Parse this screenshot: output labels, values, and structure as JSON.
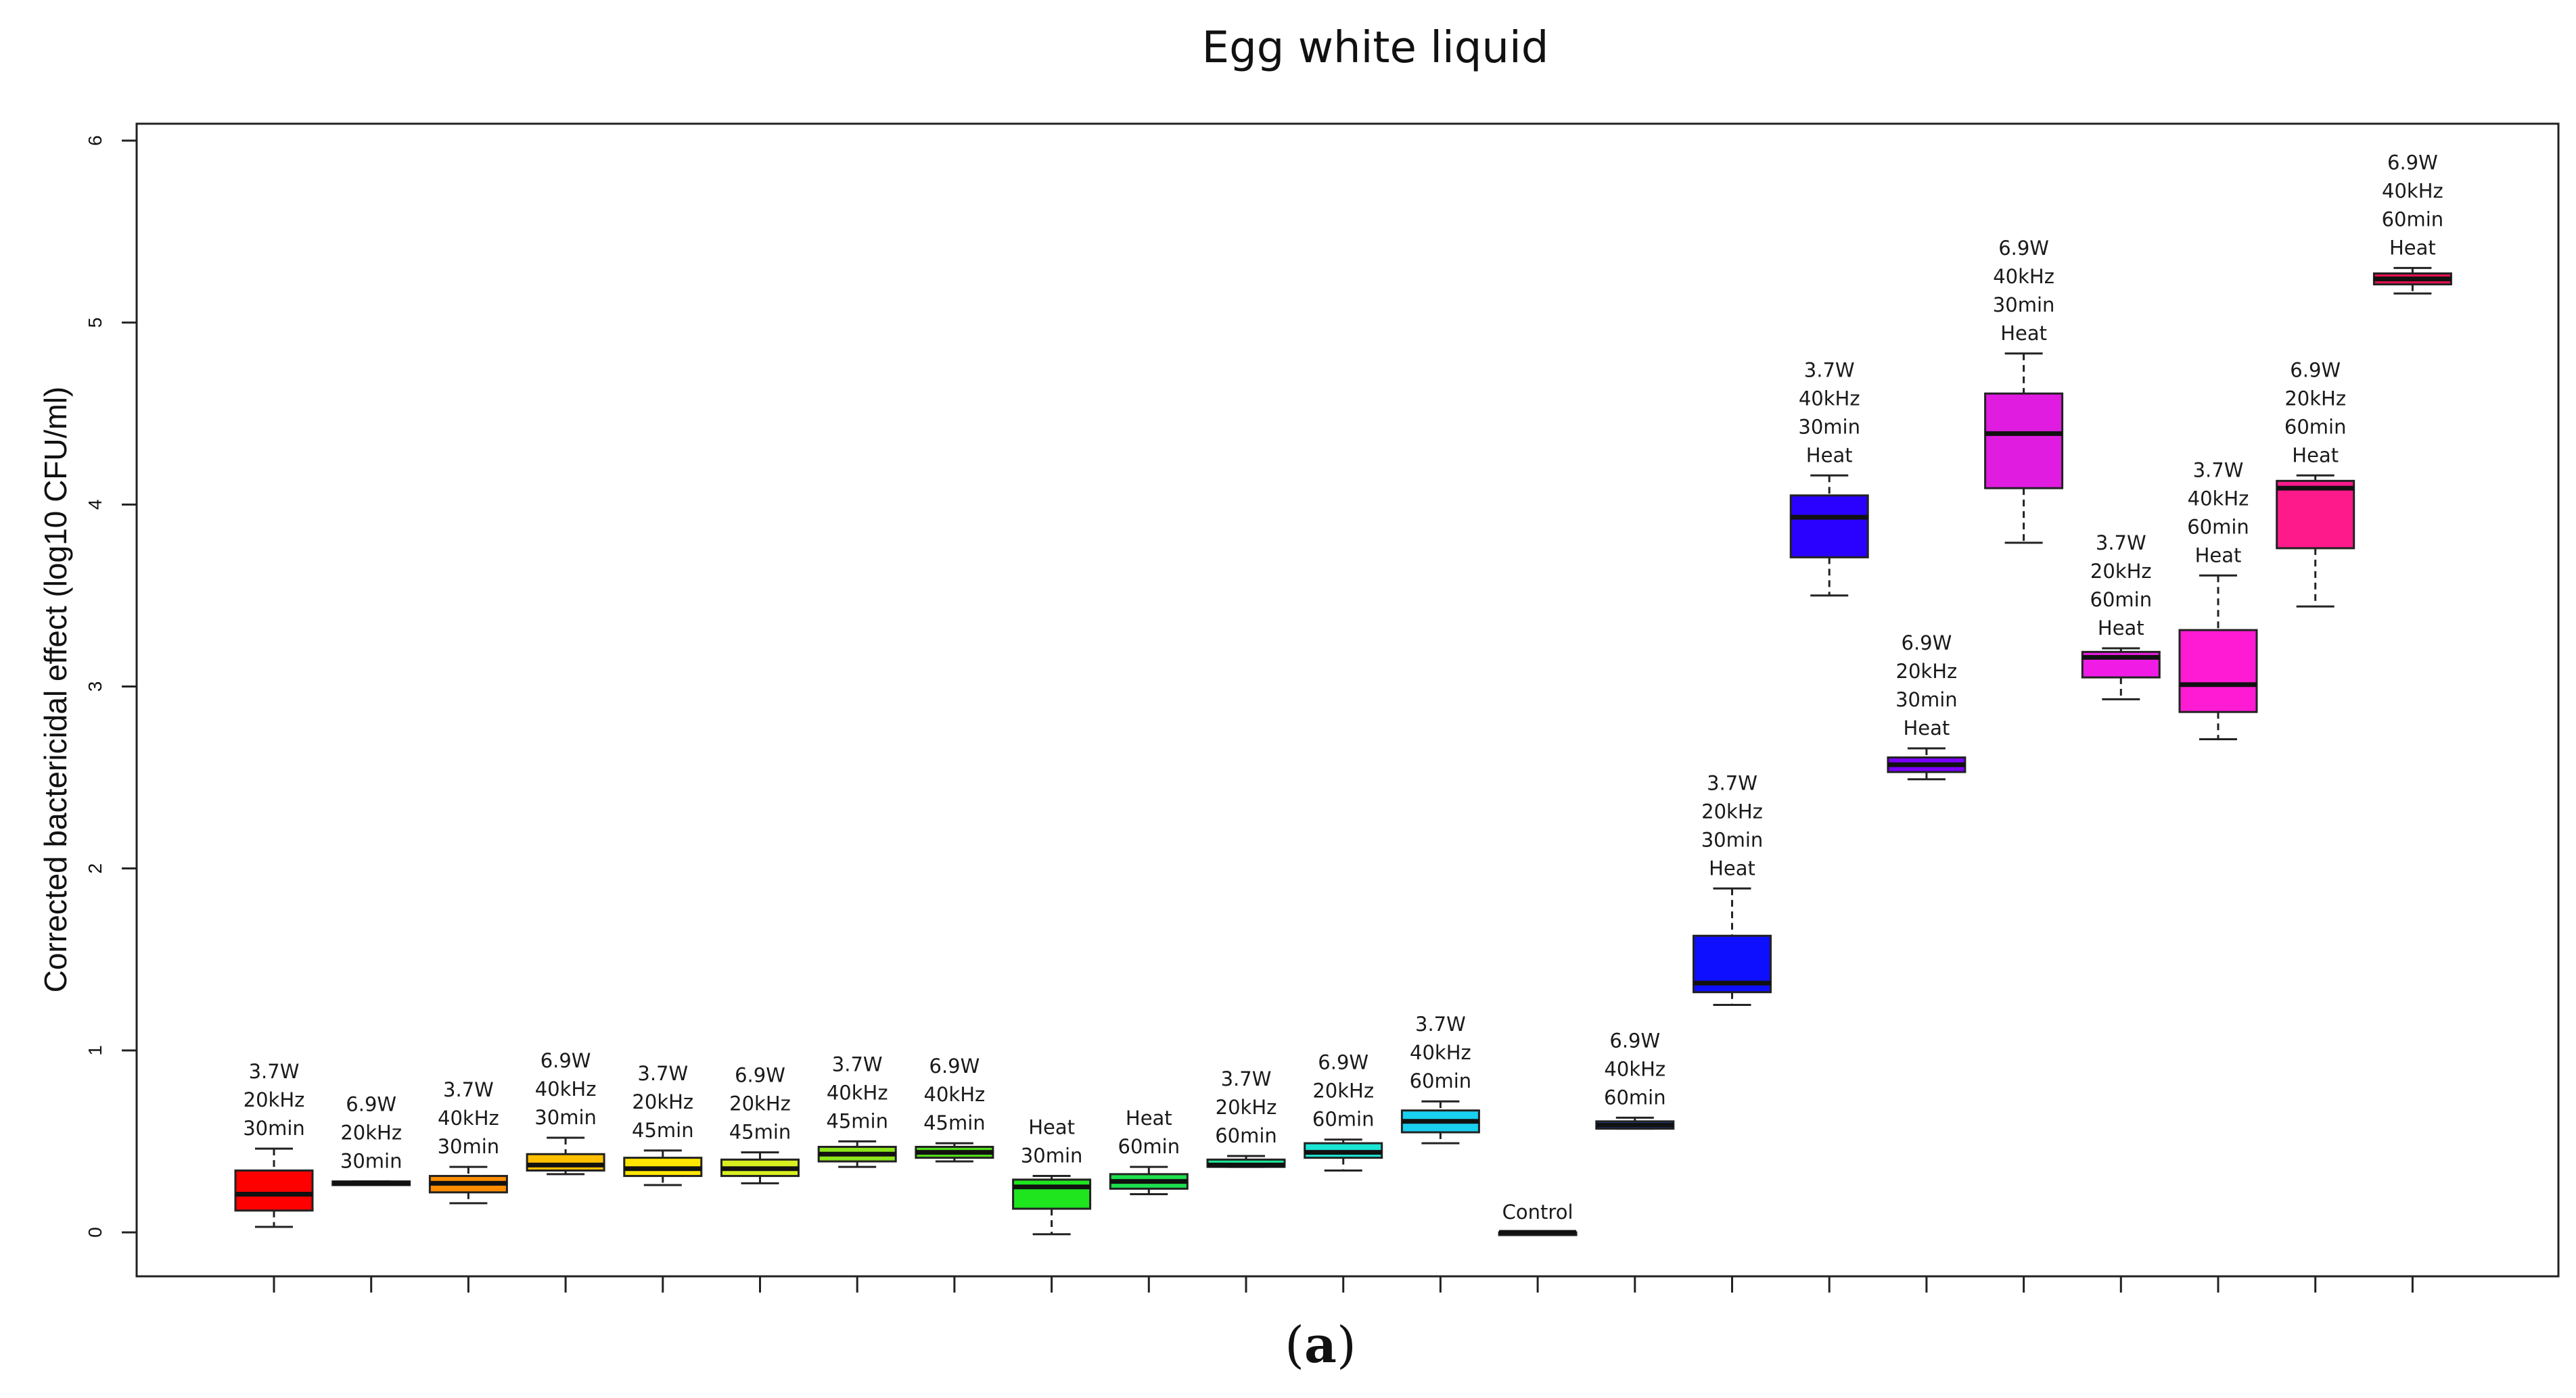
{
  "chart_data": {
    "type": "boxplot",
    "title": "Egg white liquid",
    "xlabel": "",
    "ylabel": "Corrected bactericidal effect (log10 CFU/ml)",
    "ylim": [
      0,
      6
    ],
    "yticks": [
      "0",
      "1",
      "2",
      "3",
      "4",
      "5",
      "6"
    ],
    "caption_open": "(",
    "caption_letter": "a",
    "caption_close": ")",
    "grid": false,
    "boxes": [
      {
        "label": [
          "3.7W",
          "20kHz",
          "30min"
        ],
        "color": "#ff0000",
        "min": 0.03,
        "q1": 0.12,
        "median": 0.21,
        "q3": 0.34,
        "max": 0.46
      },
      {
        "label": [
          "6.9W",
          "20kHz",
          "30min"
        ],
        "color": "#ff2a00",
        "min": 0.26,
        "q1": 0.26,
        "median": 0.27,
        "q3": 0.28,
        "max": 0.28
      },
      {
        "label": [
          "3.7W",
          "40kHz",
          "30min"
        ],
        "color": "#ff8c00",
        "min": 0.16,
        "q1": 0.22,
        "median": 0.27,
        "q3": 0.31,
        "max": 0.36
      },
      {
        "label": [
          "6.9W",
          "40kHz",
          "30min"
        ],
        "color": "#ffbf00",
        "min": 0.32,
        "q1": 0.34,
        "median": 0.37,
        "q3": 0.43,
        "max": 0.52
      },
      {
        "label": [
          "3.7W",
          "20kHz",
          "45min"
        ],
        "color": "#ffe600",
        "min": 0.26,
        "q1": 0.31,
        "median": 0.35,
        "q3": 0.41,
        "max": 0.45
      },
      {
        "label": [
          "6.9W",
          "20kHz",
          "45min"
        ],
        "color": "#d9ef1f",
        "min": 0.27,
        "q1": 0.31,
        "median": 0.35,
        "q3": 0.4,
        "max": 0.44
      },
      {
        "label": [
          "3.7W",
          "40kHz",
          "45min"
        ],
        "color": "#8ce61a",
        "min": 0.36,
        "q1": 0.39,
        "median": 0.43,
        "q3": 0.47,
        "max": 0.5
      },
      {
        "label": [
          "6.9W",
          "40kHz",
          "45min"
        ],
        "color": "#55e01c",
        "min": 0.39,
        "q1": 0.41,
        "median": 0.44,
        "q3": 0.47,
        "max": 0.49
      },
      {
        "label": [
          "Heat",
          "30min"
        ],
        "color": "#1fe51f",
        "min": -0.01,
        "q1": 0.13,
        "median": 0.25,
        "q3": 0.29,
        "max": 0.31
      },
      {
        "label": [
          "Heat",
          "60min"
        ],
        "color": "#1ce04f",
        "min": 0.21,
        "q1": 0.24,
        "median": 0.28,
        "q3": 0.32,
        "max": 0.36
      },
      {
        "label": [
          "3.7W",
          "20kHz",
          "60min"
        ],
        "color": "#1ae898",
        "min": 0.36,
        "q1": 0.36,
        "median": 0.37,
        "q3": 0.4,
        "max": 0.42
      },
      {
        "label": [
          "6.9W",
          "20kHz",
          "60min"
        ],
        "color": "#1ae6d4",
        "min": 0.34,
        "q1": 0.41,
        "median": 0.44,
        "q3": 0.49,
        "max": 0.51
      },
      {
        "label": [
          "3.7W",
          "40kHz",
          "60min"
        ],
        "color": "#1ad0f0",
        "min": 0.49,
        "q1": 0.55,
        "median": 0.61,
        "q3": 0.67,
        "max": 0.72
      },
      {
        "label": [
          "Control"
        ],
        "color": "#000000",
        "min": 0.0,
        "q1": 0.0,
        "median": 0.0,
        "q3": 0.0,
        "max": 0.0
      },
      {
        "label": [
          "6.9W",
          "40kHz",
          "60min"
        ],
        "color": "#1a5aff",
        "min": 0.57,
        "q1": 0.57,
        "median": 0.59,
        "q3": 0.61,
        "max": 0.63
      },
      {
        "label": [
          "3.7W",
          "20kHz",
          "30min",
          "Heat"
        ],
        "color": "#0f0fff",
        "min": 1.25,
        "q1": 1.32,
        "median": 1.37,
        "q3": 1.63,
        "max": 1.89
      },
      {
        "label": [
          "3.7W",
          "40kHz",
          "30min",
          "Heat"
        ],
        "color": "#2a00ff",
        "min": 3.5,
        "q1": 3.71,
        "median": 3.93,
        "q3": 4.05,
        "max": 4.16
      },
      {
        "label": [
          "6.9W",
          "20kHz",
          "30min",
          "Heat"
        ],
        "color": "#7a00ff",
        "min": 2.49,
        "q1": 2.53,
        "median": 2.57,
        "q3": 2.61,
        "max": 2.66
      },
      {
        "label": [
          "6.9W",
          "40kHz",
          "30min",
          "Heat"
        ],
        "color": "#e01ce0",
        "min": 3.79,
        "q1": 4.09,
        "median": 4.39,
        "q3": 4.61,
        "max": 4.83
      },
      {
        "label": [
          "3.7W",
          "20kHz",
          "60min",
          "Heat"
        ],
        "color": "#f01ce6",
        "min": 2.93,
        "q1": 3.05,
        "median": 3.16,
        "q3": 3.19,
        "max": 3.21
      },
      {
        "label": [
          "3.7W",
          "40kHz",
          "60min",
          "Heat"
        ],
        "color": "#ff1ad4",
        "min": 2.71,
        "q1": 2.86,
        "median": 3.01,
        "q3": 3.31,
        "max": 3.61
      },
      {
        "label": [
          "6.9W",
          "20kHz",
          "60min",
          "Heat"
        ],
        "color": "#ff1a8c",
        "min": 3.44,
        "q1": 3.76,
        "median": 4.09,
        "q3": 4.13,
        "max": 4.16
      },
      {
        "label": [
          "6.9W",
          "40kHz",
          "60min",
          "Heat"
        ],
        "color": "#e60f4f",
        "min": 5.16,
        "q1": 5.21,
        "median": 5.24,
        "q3": 5.27,
        "max": 5.3
      }
    ]
  }
}
